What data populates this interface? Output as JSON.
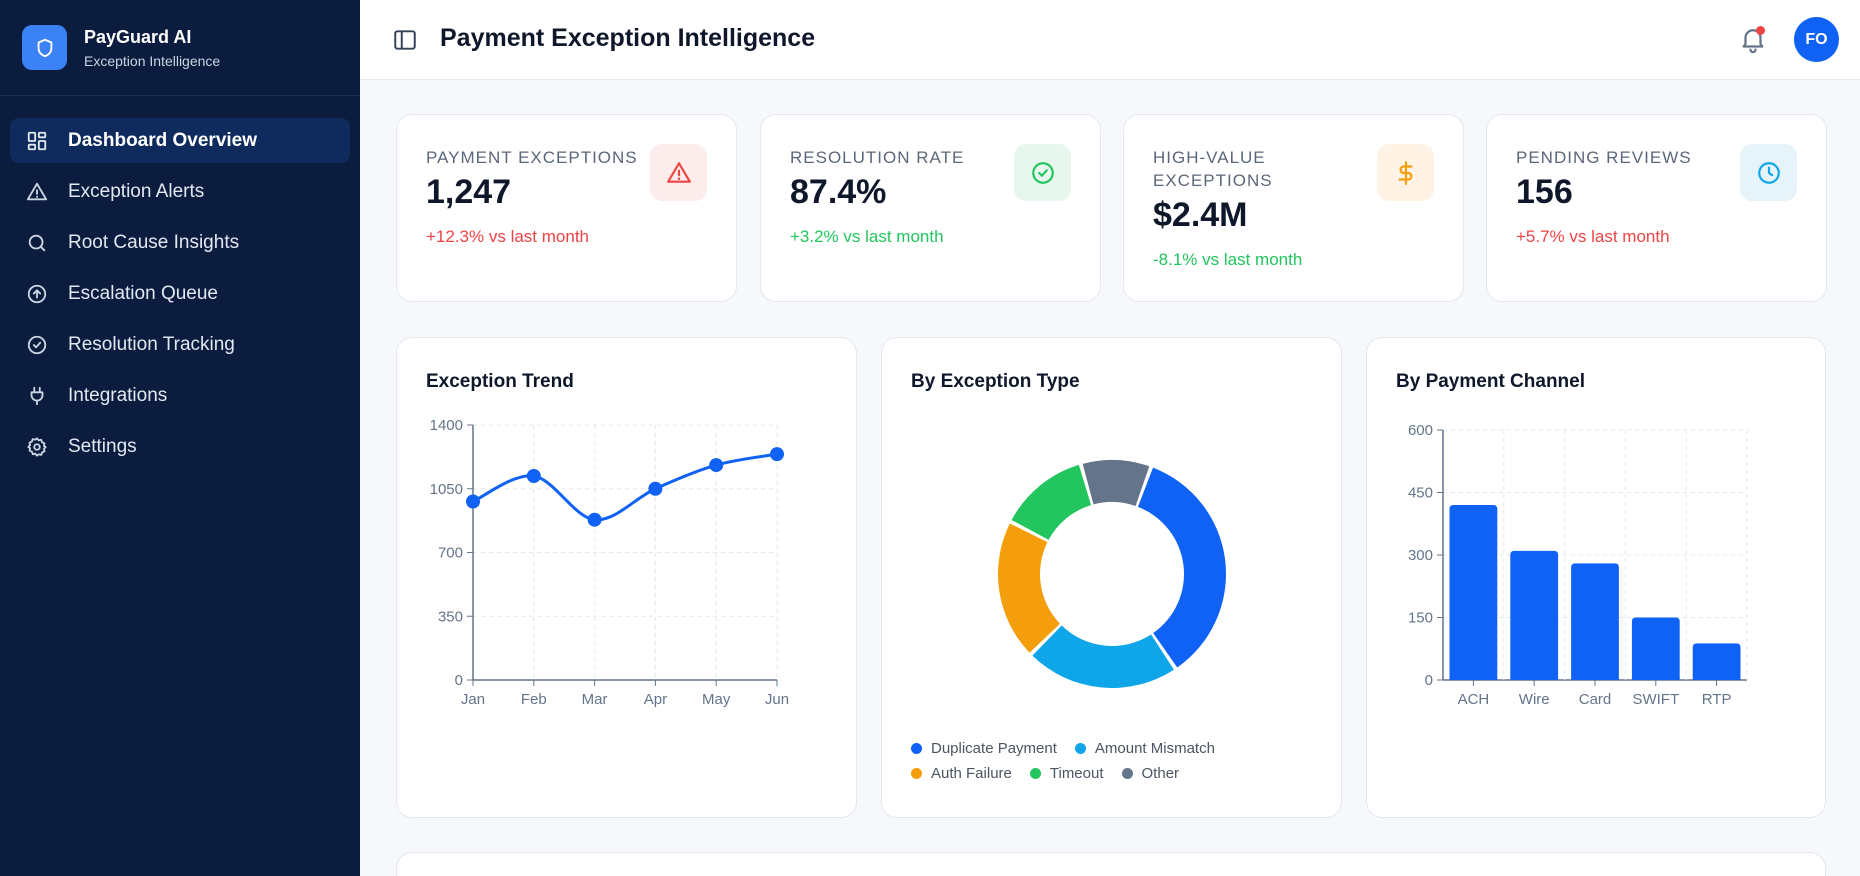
{
  "brand": {
    "name": "PayGuard AI",
    "subtitle": "Exception Intelligence"
  },
  "sidebar": {
    "items": [
      {
        "label": "Dashboard Overview",
        "icon": "grid-icon",
        "active": true
      },
      {
        "label": "Exception Alerts",
        "icon": "alert-triangle-icon"
      },
      {
        "label": "Root Cause Insights",
        "icon": "search-icon"
      },
      {
        "label": "Escalation Queue",
        "icon": "arrow-up-circle-icon"
      },
      {
        "label": "Resolution Tracking",
        "icon": "check-circle-icon"
      },
      {
        "label": "Integrations",
        "icon": "plug-icon"
      },
      {
        "label": "Settings",
        "icon": "gear-icon"
      }
    ]
  },
  "header": {
    "title": "Payment Exception Intelligence",
    "avatar_initials": "FO",
    "notification_dot": true
  },
  "kpis": [
    {
      "label": "PAYMENT EXCEPTIONS",
      "value": "1,247",
      "change": "+12.3% vs last month",
      "change_color": "#ef4444",
      "icon": "alert-triangle-icon",
      "icon_color": "#ef4444",
      "icon_bg": "#fdecec"
    },
    {
      "label": "RESOLUTION RATE",
      "value": "87.4%",
      "change": "+3.2% vs last month",
      "change_color": "#22c55e",
      "icon": "check-circle-icon",
      "icon_color": "#22c55e",
      "icon_bg": "#e8f7ee"
    },
    {
      "label": "HIGH-VALUE EXCEPTIONS",
      "value": "$2.4M",
      "change": "-8.1% vs last month",
      "change_color": "#22c55e",
      "icon": "dollar-icon",
      "icon_color": "#f59e0b",
      "icon_bg": "#fef3e4"
    },
    {
      "label": "PENDING REVIEWS",
      "value": "156",
      "change": "+5.7% vs last month",
      "change_color": "#ef4444",
      "icon": "clock-icon",
      "icon_color": "#0ea5e9",
      "icon_bg": "#e6f4fa"
    }
  ],
  "chart_data": [
    {
      "type": "line",
      "title": "Exception Trend",
      "x": [
        "Jan",
        "Feb",
        "Mar",
        "Apr",
        "May",
        "Jun"
      ],
      "values": [
        980,
        1120,
        880,
        1050,
        1180,
        1240
      ],
      "ylim": [
        0,
        1400
      ],
      "yticks": [
        0,
        350,
        700,
        1050,
        1400
      ],
      "grid": true,
      "color": "#1062f5"
    },
    {
      "type": "pie",
      "title": "By Exception Type",
      "donut": true,
      "categories": [
        "Duplicate Payment",
        "Amount Mismatch",
        "Auth Failure",
        "Timeout",
        "Other"
      ],
      "values": [
        35,
        22,
        20,
        13,
        10
      ],
      "colors": [
        "#1062f5",
        "#0ea5e9",
        "#f59e0b",
        "#22c55e",
        "#64748b"
      ],
      "legend": "bottom"
    },
    {
      "type": "bar",
      "title": "By Payment Channel",
      "categories": [
        "ACH",
        "Wire",
        "Card",
        "SWIFT",
        "RTP"
      ],
      "values": [
        420,
        310,
        280,
        150,
        88
      ],
      "ylim": [
        0,
        600
      ],
      "yticks": [
        0,
        150,
        300,
        450,
        600
      ],
      "grid": true,
      "color": "#1062f5"
    }
  ]
}
